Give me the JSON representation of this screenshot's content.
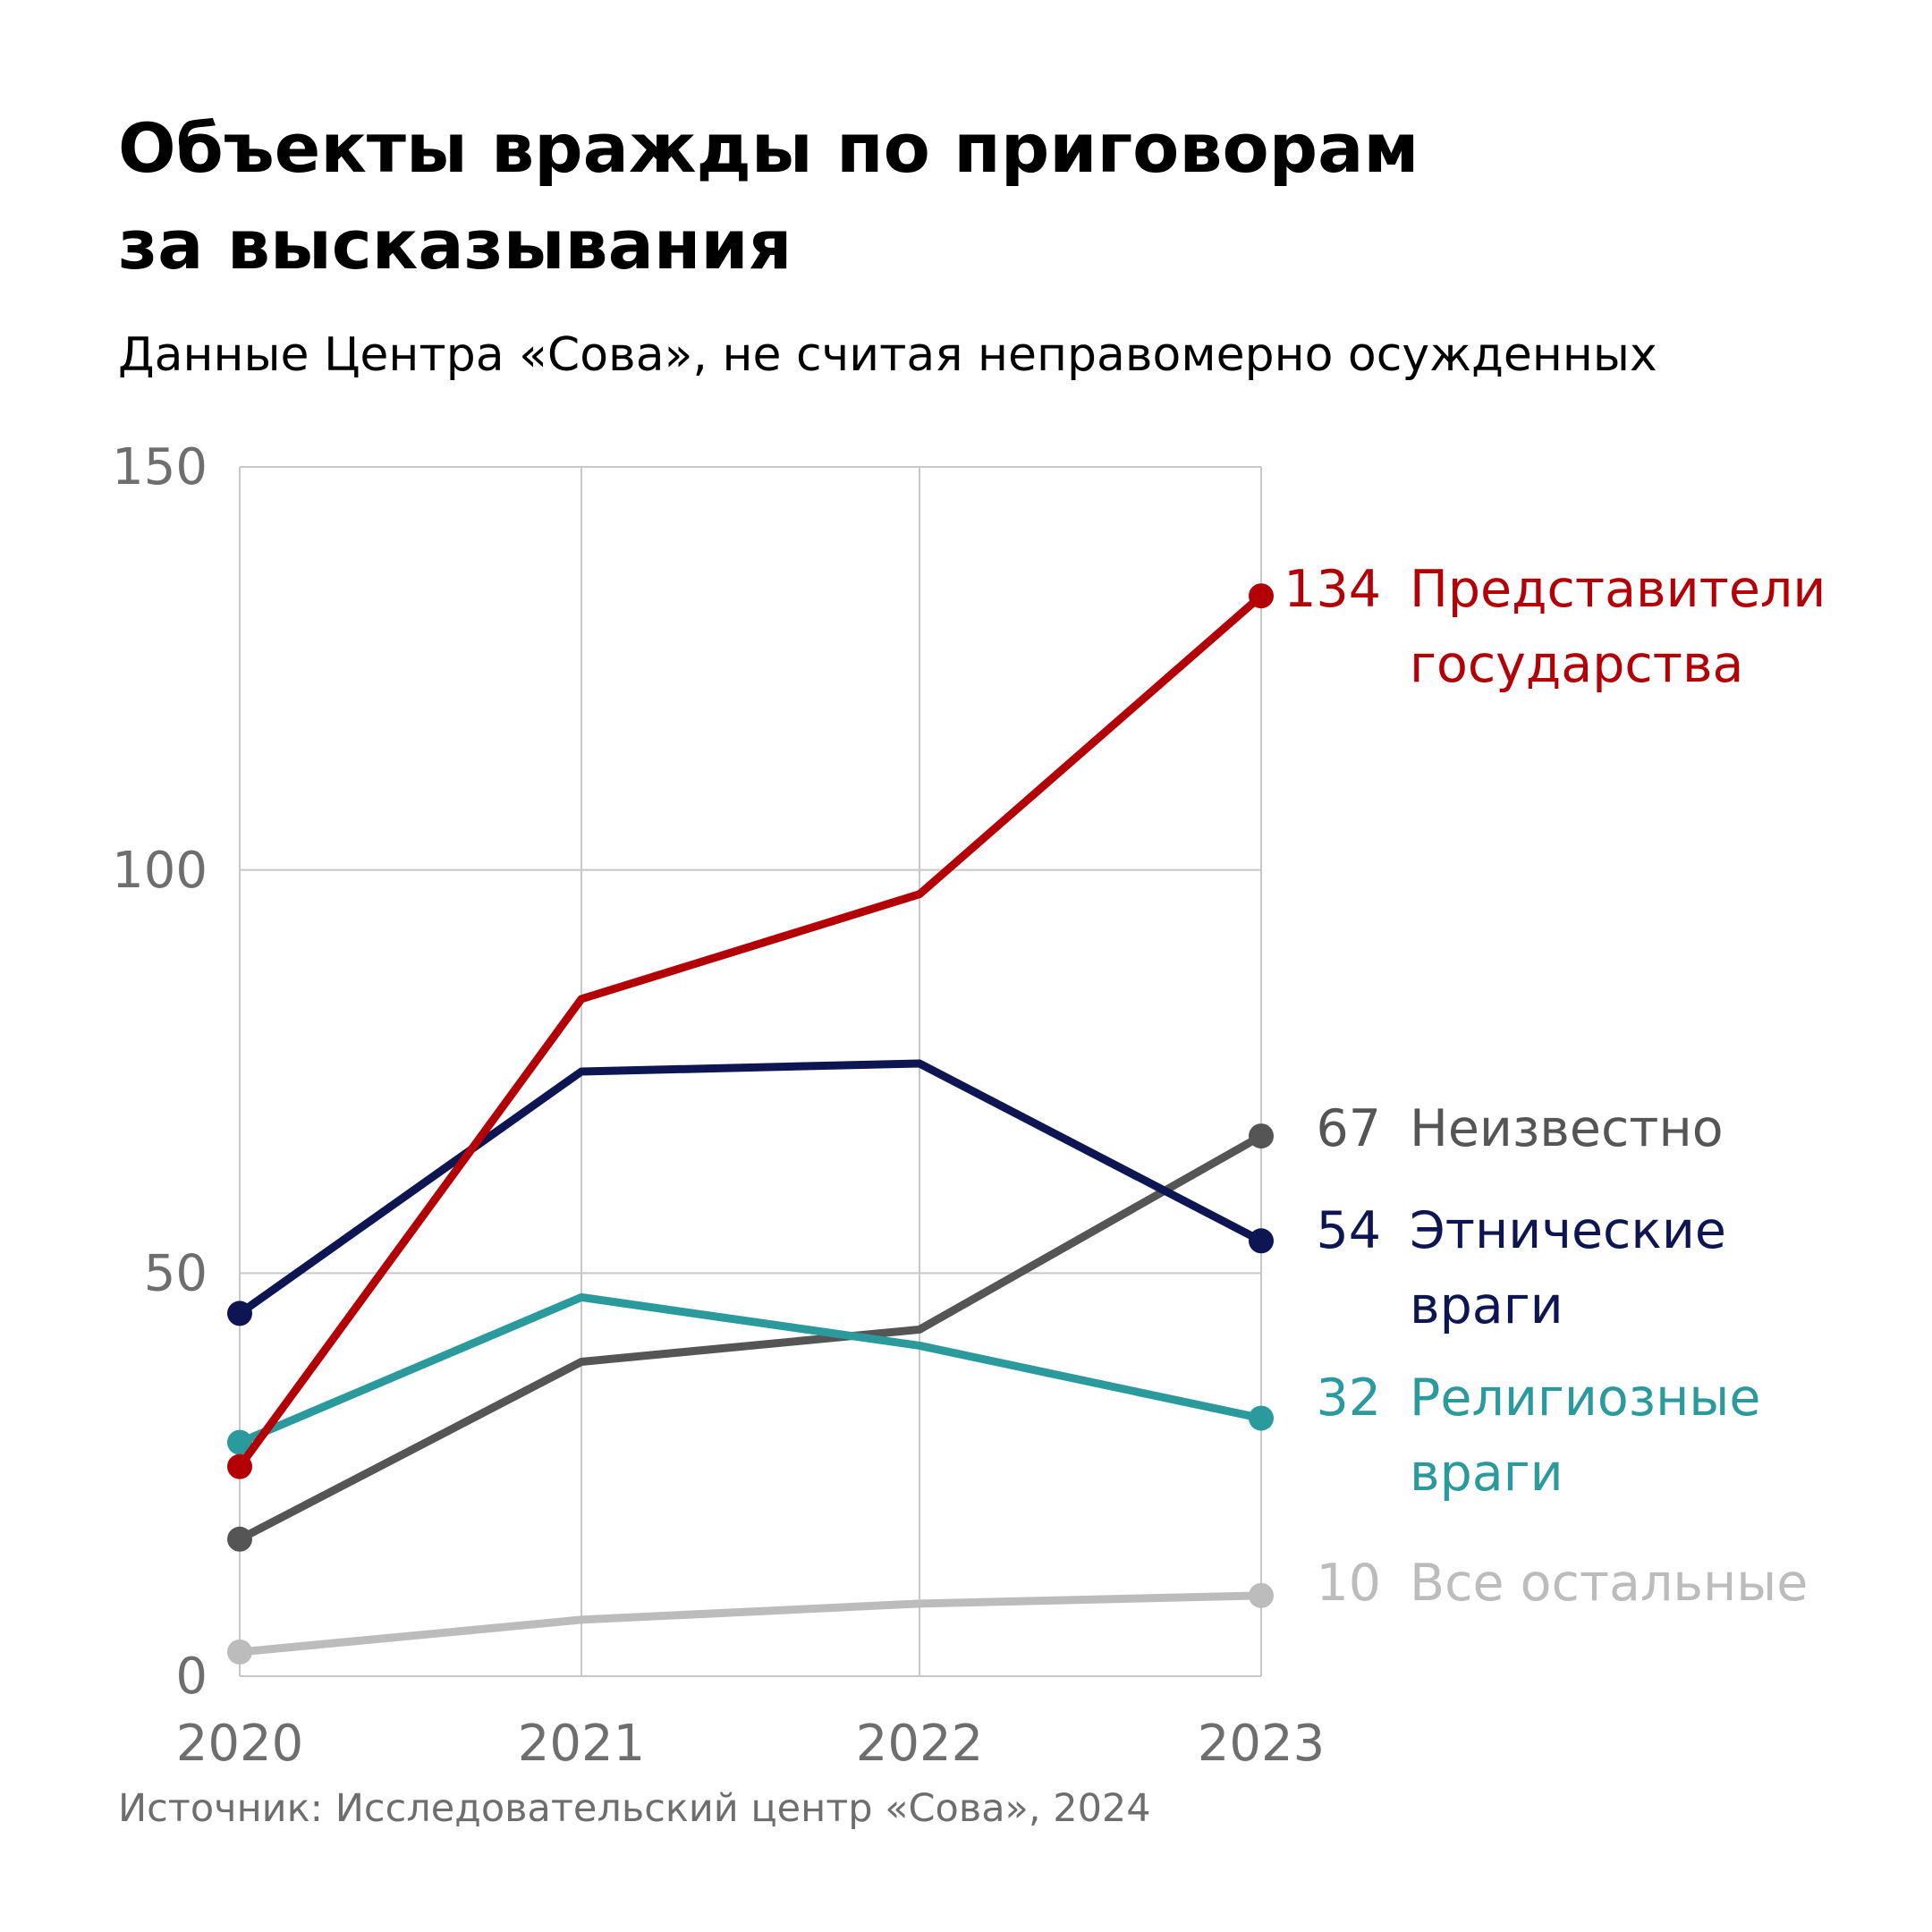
{
  "title": {
    "line1": "Объекты вражды по приговорам",
    "line2": "за высказывания"
  },
  "subtitle": "Данные Центра «Сова», не считая неправомерно осужденных",
  "source": "Источник: Исследовательский центр «Сова», 2024",
  "chart_data": {
    "type": "line",
    "title": "Объекты вражды по приговорам за высказывания",
    "subtitle": "Данные Центра «Сова», не считая неправомерно осужденных",
    "xlabel": "",
    "ylabel": "",
    "x": [
      "2020",
      "2021",
      "2022",
      "2023"
    ],
    "ylim": [
      0,
      150
    ],
    "yticks": [
      0,
      50,
      100,
      150
    ],
    "grid": true,
    "legend": "direct labels at right",
    "series": [
      {
        "name": "Все остальные",
        "label_lines": [
          "Все остальные"
        ],
        "end_label": "10",
        "color": "#bcbcbc",
        "values": [
          3,
          7,
          9,
          10
        ]
      },
      {
        "name": "Неизвестно",
        "label_lines": [
          "Неизвестно"
        ],
        "end_label": "67",
        "color": "#555555",
        "values": [
          17,
          39,
          43,
          67
        ]
      },
      {
        "name": "Религиозные враги",
        "label_lines": [
          "Религиозные",
          "враги"
        ],
        "end_label": "32",
        "color": "#2b9a9c",
        "values": [
          29,
          47,
          41,
          32
        ]
      },
      {
        "name": "Этнические враги",
        "label_lines": [
          "Этнические",
          "враги"
        ],
        "end_label": "54",
        "color": "#0d1653",
        "values": [
          45,
          75,
          76,
          54
        ]
      },
      {
        "name": "Представители государства",
        "label_lines": [
          "Представители",
          "государства"
        ],
        "end_label": "134",
        "color": "#b30006",
        "values": [
          26,
          84,
          97,
          134
        ]
      }
    ]
  }
}
